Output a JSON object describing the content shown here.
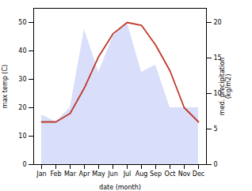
{
  "chart_data": {
    "type": "line",
    "xlabel": "date (month)",
    "ylabel": "max temp (C)",
    "y2label": "med. precipitation\n(kg/m2)",
    "categories": [
      "Jan",
      "Feb",
      "Mar",
      "Apr",
      "May",
      "Jun",
      "Jul",
      "Aug",
      "Sep",
      "Oct",
      "Nov",
      "Dec"
    ],
    "series": [
      {
        "type": "area",
        "axis": "y2",
        "color": "#b3bef5",
        "values": [
          7,
          6,
          8,
          19,
          13,
          18,
          20,
          13,
          14,
          8,
          8,
          8
        ]
      },
      {
        "type": "line",
        "color": "#c0392b",
        "values": [
          15,
          15,
          18,
          27,
          38,
          46,
          50,
          49,
          42,
          33,
          20,
          15
        ]
      }
    ],
    "ylim": [
      0,
      55
    ],
    "yticks": [
      0,
      10,
      20,
      30,
      40,
      50
    ],
    "y2lim": [
      0,
      22
    ],
    "y2ticks": [
      0,
      5,
      10,
      15,
      20
    ]
  }
}
